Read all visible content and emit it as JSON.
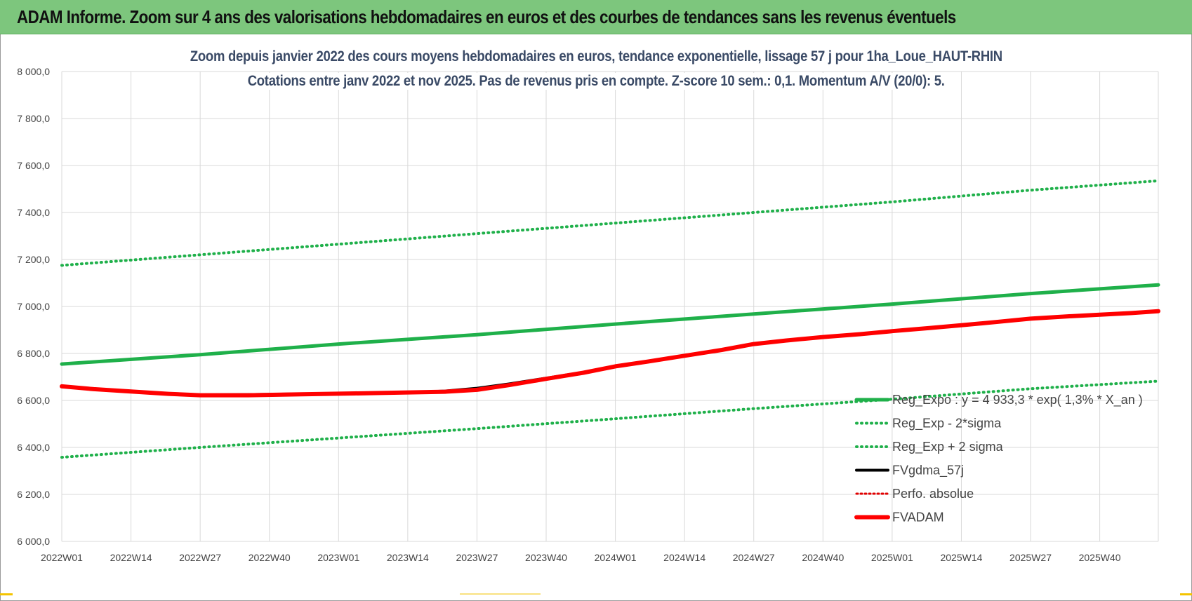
{
  "banner": {
    "title": "ADAM Informe. Zoom sur 4 ans des valorisations hebdomadaires en euros et des courbes de tendances sans les revenus éventuels"
  },
  "colors": {
    "banner": "#7dc67d",
    "reg_expo": "#1fb04a",
    "sigma_bands": "#1fb04a",
    "fvgdma": "#000000",
    "perfo": "#e00000",
    "fvadam": "#ff0000",
    "title_text": "#3a4a66"
  },
  "chart_data": {
    "type": "line",
    "title": "Zoom depuis janvier 2022 des cours moyens hebdomadaires en euros, tendance exponentielle, lissage 57 j pour 1ha_Loue_HAUT-RHIN",
    "subtitle": "Cotations entre janv 2022 et nov 2025. Pas de revenus pris en compte. Z-score 10 sem.: 0,1. Momentum A/V (20/0): 5.",
    "ylim": [
      6000,
      8000
    ],
    "y_ticks": [
      "8 000,0",
      "7 800,0",
      "7 600,0",
      "7 400,0",
      "7 200,0",
      "7 000,0",
      "6 800,0",
      "6 600,0",
      "6 400,0",
      "6 200,0",
      "6 000,0"
    ],
    "y_tick_values": [
      8000,
      7800,
      7600,
      7400,
      7200,
      7000,
      6800,
      6600,
      6400,
      6200,
      6000
    ],
    "x_ticks": [
      "2022W01",
      "2022W14",
      "2022W27",
      "2022W40",
      "2023W01",
      "2023W14",
      "2023W27",
      "2023W40",
      "2024W01",
      "2024W14",
      "2024W27",
      "2024W40",
      "2025W01",
      "2025W14",
      "2025W27",
      "2025W40"
    ],
    "x_range_weeks": [
      0,
      206
    ],
    "x_tick_weeks": [
      0,
      13,
      26,
      39,
      52,
      65,
      78,
      91,
      104,
      117,
      130,
      143,
      156,
      169,
      182,
      195
    ],
    "grid": true,
    "legend_position": "bottom-right",
    "series": [
      {
        "name": "Reg_Expo : y = 4 933,3 * exp( 1,3% *  X_an )",
        "style": "solid",
        "x": [
          0,
          26,
          52,
          78,
          104,
          130,
          156,
          182,
          206
        ],
        "values": [
          6755,
          6795,
          6840,
          6880,
          6925,
          6968,
          7010,
          7055,
          7092
        ]
      },
      {
        "name": "Reg_Exp - 2*sigma",
        "style": "dotted",
        "x": [
          0,
          26,
          52,
          78,
          104,
          130,
          156,
          182,
          206
        ],
        "values": [
          6358,
          6400,
          6440,
          6480,
          6522,
          6565,
          6605,
          6650,
          6682
        ]
      },
      {
        "name": "Reg_Exp + 2 sigma",
        "style": "dotted",
        "x": [
          0,
          26,
          52,
          78,
          104,
          130,
          156,
          182,
          206
        ],
        "values": [
          7175,
          7220,
          7265,
          7310,
          7355,
          7400,
          7445,
          7495,
          7535
        ]
      },
      {
        "name": "FVgdma_57j",
        "style": "solid",
        "x": [
          0,
          6,
          13,
          20,
          26,
          35,
          45,
          55,
          65,
          72,
          78,
          84,
          91,
          98,
          104,
          110,
          117,
          124,
          130,
          136,
          143,
          150,
          156,
          163,
          169,
          176,
          182,
          189,
          195,
          201,
          206
        ],
        "values": [
          6660,
          6648,
          6638,
          6628,
          6624,
          6625,
          6628,
          6630,
          6634,
          6640,
          6652,
          6670,
          6695,
          6720,
          6745,
          6765,
          6790,
          6815,
          6840,
          6855,
          6870,
          6882,
          6895,
          6908,
          6920,
          6935,
          6948,
          6958,
          6965,
          6972,
          6978
        ]
      },
      {
        "name": "Perfo. absolue",
        "style": "dotted",
        "x": [],
        "values": []
      },
      {
        "name": "FVADAM",
        "style": "solid",
        "x": [
          0,
          6,
          13,
          20,
          26,
          35,
          45,
          55,
          65,
          72,
          78,
          84,
          91,
          98,
          104,
          110,
          117,
          124,
          130,
          136,
          143,
          150,
          156,
          163,
          169,
          176,
          182,
          189,
          195,
          201,
          206
        ],
        "values": [
          6660,
          6648,
          6638,
          6628,
          6622,
          6622,
          6626,
          6630,
          6634,
          6637,
          6645,
          6665,
          6692,
          6718,
          6745,
          6765,
          6790,
          6815,
          6840,
          6855,
          6870,
          6882,
          6895,
          6908,
          6920,
          6935,
          6948,
          6958,
          6965,
          6972,
          6980
        ]
      }
    ]
  }
}
